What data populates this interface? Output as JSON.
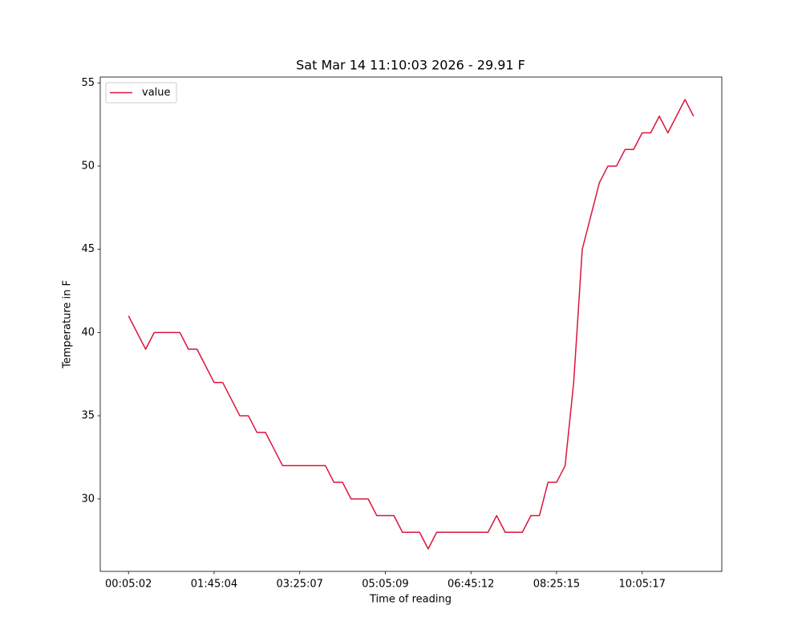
{
  "chart_data": {
    "type": "line",
    "title": "Sat Mar 14 11:10:03 2026 - 29.91 F",
    "x_label": "Time of reading",
    "y_label": "Temperature in F",
    "categories": [
      "00:05:02",
      null,
      null,
      null,
      null,
      null,
      null,
      null,
      null,
      null,
      "01:45:04",
      null,
      null,
      null,
      null,
      null,
      null,
      null,
      null,
      null,
      "03:25:07",
      null,
      null,
      null,
      null,
      null,
      null,
      null,
      null,
      null,
      "05:05:09",
      null,
      null,
      null,
      null,
      null,
      null,
      null,
      null,
      null,
      "06:45:12",
      null,
      null,
      null,
      null,
      null,
      null,
      null,
      null,
      null,
      "08:25:15",
      null,
      null,
      null,
      null,
      null,
      null,
      null,
      null,
      null,
      "10:05:17",
      null,
      null,
      null,
      null,
      null,
      null
    ],
    "series": [
      {
        "name": "value",
        "color": "#dc143c",
        "values": [
          41,
          40,
          39,
          40,
          40,
          40,
          40,
          39,
          39,
          38,
          37,
          37,
          36,
          35,
          35,
          34,
          34,
          33,
          32,
          32,
          32,
          32,
          32,
          32,
          31,
          31,
          30,
          30,
          30,
          29,
          29,
          29,
          28,
          28,
          28,
          27,
          28,
          28,
          28,
          28,
          28,
          28,
          28,
          29,
          28,
          28,
          28,
          29,
          29,
          31,
          31,
          32,
          37,
          45,
          47,
          49,
          50,
          50,
          51,
          51,
          52,
          52,
          53,
          52,
          53,
          54,
          53
        ]
      }
    ],
    "ylim": [
      25.65,
      55.35
    ],
    "yticks": [
      30,
      35,
      40,
      45,
      50,
      55
    ],
    "legend": "upper left",
    "grid": false
  }
}
